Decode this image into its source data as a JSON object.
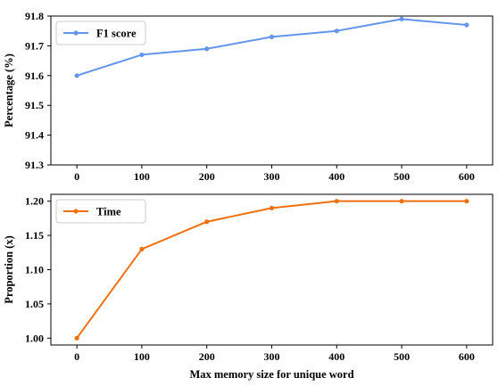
{
  "chart_data": [
    {
      "type": "line",
      "x": [
        0,
        100,
        200,
        300,
        400,
        500,
        600
      ],
      "series": [
        {
          "name": "F1 score",
          "values": [
            91.6,
            91.67,
            91.69,
            91.73,
            91.75,
            91.79,
            91.77
          ]
        }
      ],
      "color": "#6495ed",
      "xlabel": "",
      "ylabel": "Percentage (%)",
      "xlim": [
        -40,
        640
      ],
      "ylim": [
        91.3,
        91.8
      ],
      "xticks": [
        "0",
        "100",
        "200",
        "300",
        "400",
        "500",
        "600"
      ],
      "yticks": [
        "91.3",
        "91.4",
        "91.5",
        "91.6",
        "91.7",
        "91.8"
      ],
      "legend": "top-left",
      "grid": false
    },
    {
      "type": "line",
      "x": [
        0,
        100,
        200,
        300,
        400,
        500,
        600
      ],
      "series": [
        {
          "name": "Time",
          "values": [
            1.0,
            1.13,
            1.17,
            1.19,
            1.2,
            1.2,
            1.2
          ]
        }
      ],
      "color": "#f07010",
      "xlabel": "Max memory size for unique word",
      "ylabel": "Proportion (x)",
      "xlim": [
        -40,
        640
      ],
      "ylim": [
        0.99,
        1.21
      ],
      "xticks": [
        "0",
        "100",
        "200",
        "300",
        "400",
        "500",
        "600"
      ],
      "yticks": [
        "1.00",
        "1.05",
        "1.10",
        "1.15",
        "1.20"
      ],
      "legend": "top-left",
      "grid": false
    }
  ]
}
